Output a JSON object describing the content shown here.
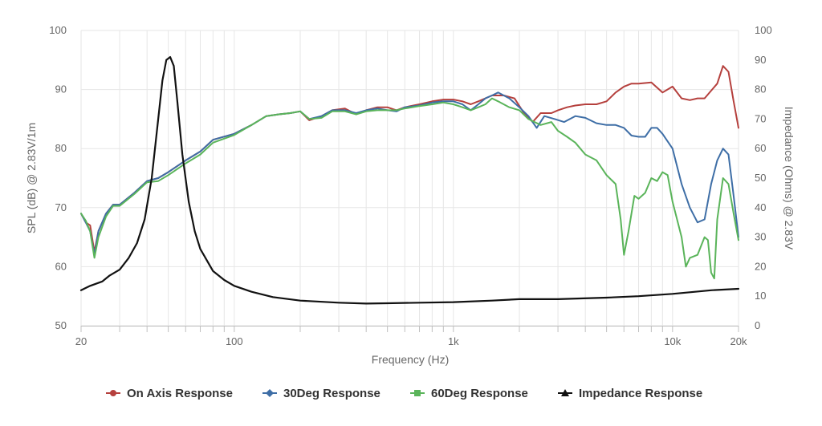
{
  "chart_data": {
    "type": "line",
    "x_scale": "log",
    "xlim": [
      20,
      20000
    ],
    "ylim_left": [
      50,
      100
    ],
    "ylim_right": [
      0,
      100
    ],
    "xlabel": "Frequency (Hz)",
    "ylabel_left": "SPL (dB) @ 2.83V/1m",
    "ylabel_right": "Impedance (Ohms) @ 2.83V",
    "x_ticks": [
      {
        "value": 20,
        "label": "20"
      },
      {
        "value": 100,
        "label": "100"
      },
      {
        "value": 1000,
        "label": "1k"
      },
      {
        "value": 10000,
        "label": "10k"
      },
      {
        "value": 20000,
        "label": "20k"
      }
    ],
    "y_ticks_left": [
      "50",
      "60",
      "70",
      "80",
      "90",
      "100"
    ],
    "y_ticks_right": [
      "0",
      "10",
      "20",
      "30",
      "40",
      "50",
      "60",
      "70",
      "80",
      "90",
      "100"
    ],
    "grid": true,
    "legend_position": "bottom",
    "series": [
      {
        "name": "On Axis Response",
        "axis": "left",
        "color": "#b5403d",
        "marker": "circle",
        "points": [
          [
            20,
            69
          ],
          [
            21,
            67.5
          ],
          [
            22,
            67
          ],
          [
            23,
            62.5
          ],
          [
            24,
            66
          ],
          [
            26,
            69
          ],
          [
            28,
            70.5
          ],
          [
            30,
            70.5
          ],
          [
            35,
            72.5
          ],
          [
            40,
            74.5
          ],
          [
            45,
            75
          ],
          [
            50,
            76
          ],
          [
            60,
            78
          ],
          [
            70,
            79.5
          ],
          [
            80,
            81.5
          ],
          [
            100,
            82.5
          ],
          [
            120,
            84
          ],
          [
            140,
            85.5
          ],
          [
            160,
            85.8
          ],
          [
            180,
            86
          ],
          [
            200,
            86.3
          ],
          [
            220,
            84.8
          ],
          [
            250,
            85.5
          ],
          [
            280,
            86.5
          ],
          [
            320,
            86.8
          ],
          [
            360,
            85.8
          ],
          [
            400,
            86.5
          ],
          [
            450,
            87
          ],
          [
            500,
            87
          ],
          [
            550,
            86.5
          ],
          [
            600,
            87
          ],
          [
            700,
            87.5
          ],
          [
            800,
            88
          ],
          [
            900,
            88.3
          ],
          [
            1000,
            88.3
          ],
          [
            1100,
            88
          ],
          [
            1200,
            87.5
          ],
          [
            1300,
            88
          ],
          [
            1400,
            88.5
          ],
          [
            1500,
            89
          ],
          [
            1700,
            89
          ],
          [
            1900,
            88.5
          ],
          [
            2100,
            86
          ],
          [
            2300,
            84.5
          ],
          [
            2500,
            86
          ],
          [
            2800,
            86
          ],
          [
            3000,
            86.5
          ],
          [
            3300,
            87
          ],
          [
            3600,
            87.3
          ],
          [
            4000,
            87.5
          ],
          [
            4500,
            87.5
          ],
          [
            5000,
            88
          ],
          [
            5500,
            89.5
          ],
          [
            6000,
            90.5
          ],
          [
            6500,
            91
          ],
          [
            7000,
            91
          ],
          [
            8000,
            91.2
          ],
          [
            9000,
            89.5
          ],
          [
            10000,
            90.5
          ],
          [
            11000,
            88.5
          ],
          [
            12000,
            88.2
          ],
          [
            13000,
            88.5
          ],
          [
            14000,
            88.5
          ],
          [
            16000,
            91
          ],
          [
            17000,
            94
          ],
          [
            18000,
            93
          ],
          [
            19000,
            88
          ],
          [
            20000,
            83.5
          ]
        ]
      },
      {
        "name": "30Deg Response",
        "axis": "left",
        "color": "#3e6ea6",
        "marker": "diamond",
        "points": [
          [
            20,
            69
          ],
          [
            21,
            67.5
          ],
          [
            22,
            66
          ],
          [
            23,
            62
          ],
          [
            24,
            66
          ],
          [
            26,
            69
          ],
          [
            28,
            70.5
          ],
          [
            30,
            70.5
          ],
          [
            35,
            72.5
          ],
          [
            40,
            74.5
          ],
          [
            45,
            75
          ],
          [
            50,
            76
          ],
          [
            60,
            78
          ],
          [
            70,
            79.5
          ],
          [
            80,
            81.5
          ],
          [
            100,
            82.5
          ],
          [
            120,
            84
          ],
          [
            140,
            85.5
          ],
          [
            160,
            85.8
          ],
          [
            180,
            86
          ],
          [
            200,
            86.3
          ],
          [
            220,
            85
          ],
          [
            250,
            85.5
          ],
          [
            280,
            86.5
          ],
          [
            320,
            86.5
          ],
          [
            360,
            86
          ],
          [
            400,
            86.5
          ],
          [
            450,
            86.8
          ],
          [
            500,
            86.5
          ],
          [
            550,
            86.3
          ],
          [
            600,
            87
          ],
          [
            700,
            87.3
          ],
          [
            800,
            87.8
          ],
          [
            900,
            88
          ],
          [
            1000,
            88
          ],
          [
            1100,
            87.5
          ],
          [
            1200,
            86.5
          ],
          [
            1300,
            87.5
          ],
          [
            1400,
            88.5
          ],
          [
            1500,
            89
          ],
          [
            1600,
            89.5
          ],
          [
            1800,
            88.5
          ],
          [
            2000,
            87
          ],
          [
            2200,
            85.5
          ],
          [
            2400,
            83.5
          ],
          [
            2600,
            85.5
          ],
          [
            2900,
            85
          ],
          [
            3200,
            84.5
          ],
          [
            3600,
            85.5
          ],
          [
            4000,
            85.2
          ],
          [
            4500,
            84.3
          ],
          [
            5000,
            84
          ],
          [
            5500,
            84
          ],
          [
            6000,
            83.5
          ],
          [
            6500,
            82.2
          ],
          [
            7000,
            82
          ],
          [
            7500,
            82
          ],
          [
            8000,
            83.5
          ],
          [
            8500,
            83.5
          ],
          [
            9000,
            82.5
          ],
          [
            10000,
            80
          ],
          [
            11000,
            74
          ],
          [
            12000,
            70
          ],
          [
            13000,
            67.5
          ],
          [
            14000,
            68
          ],
          [
            15000,
            74
          ],
          [
            16000,
            78
          ],
          [
            17000,
            80
          ],
          [
            18000,
            79
          ],
          [
            19000,
            72
          ],
          [
            20000,
            65
          ]
        ]
      },
      {
        "name": "60Deg Response",
        "axis": "left",
        "color": "#5ab45a",
        "marker": "square",
        "points": [
          [
            20,
            69
          ],
          [
            21,
            67.8
          ],
          [
            22,
            66
          ],
          [
            23,
            61.5
          ],
          [
            24,
            65
          ],
          [
            26,
            68.5
          ],
          [
            28,
            70.3
          ],
          [
            30,
            70.3
          ],
          [
            35,
            72.3
          ],
          [
            40,
            74.3
          ],
          [
            45,
            74.5
          ],
          [
            50,
            75.5
          ],
          [
            60,
            77.5
          ],
          [
            70,
            79
          ],
          [
            80,
            81
          ],
          [
            100,
            82.3
          ],
          [
            120,
            84
          ],
          [
            140,
            85.5
          ],
          [
            160,
            85.8
          ],
          [
            180,
            86
          ],
          [
            200,
            86.3
          ],
          [
            220,
            85
          ],
          [
            250,
            85.2
          ],
          [
            280,
            86.3
          ],
          [
            320,
            86.3
          ],
          [
            360,
            85.8
          ],
          [
            400,
            86.3
          ],
          [
            450,
            86.5
          ],
          [
            500,
            86.5
          ],
          [
            550,
            86.5
          ],
          [
            600,
            86.8
          ],
          [
            700,
            87.2
          ],
          [
            800,
            87.5
          ],
          [
            900,
            87.8
          ],
          [
            1000,
            87.5
          ],
          [
            1100,
            87
          ],
          [
            1200,
            86.5
          ],
          [
            1300,
            87
          ],
          [
            1400,
            87.5
          ],
          [
            1500,
            88.5
          ],
          [
            1600,
            88
          ],
          [
            1800,
            87
          ],
          [
            2000,
            86.5
          ],
          [
            2200,
            85
          ],
          [
            2500,
            84
          ],
          [
            2800,
            84.5
          ],
          [
            3000,
            83
          ],
          [
            3300,
            82
          ],
          [
            3600,
            81
          ],
          [
            4000,
            79
          ],
          [
            4500,
            78
          ],
          [
            5000,
            75.5
          ],
          [
            5500,
            74
          ],
          [
            5800,
            68
          ],
          [
            6000,
            62
          ],
          [
            6300,
            66
          ],
          [
            6700,
            72
          ],
          [
            7000,
            71.5
          ],
          [
            7500,
            72.5
          ],
          [
            8000,
            75
          ],
          [
            8500,
            74.5
          ],
          [
            9000,
            76
          ],
          [
            9500,
            75.5
          ],
          [
            10000,
            71
          ],
          [
            11000,
            65
          ],
          [
            11500,
            60
          ],
          [
            12000,
            61.5
          ],
          [
            13000,
            62
          ],
          [
            14000,
            65
          ],
          [
            14500,
            64.5
          ],
          [
            15000,
            59
          ],
          [
            15500,
            58
          ],
          [
            16000,
            68
          ],
          [
            17000,
            75
          ],
          [
            18000,
            74
          ],
          [
            19000,
            69
          ],
          [
            20000,
            64.5
          ]
        ]
      },
      {
        "name": "Impedance Response",
        "axis": "right",
        "color": "#111111",
        "marker": "triangle",
        "points": [
          [
            20,
            12
          ],
          [
            22,
            13.5
          ],
          [
            25,
            15
          ],
          [
            27,
            17
          ],
          [
            30,
            19
          ],
          [
            33,
            23
          ],
          [
            36,
            28
          ],
          [
            39,
            36
          ],
          [
            42,
            50
          ],
          [
            45,
            70
          ],
          [
            47,
            83
          ],
          [
            49,
            90
          ],
          [
            51,
            91
          ],
          [
            53,
            88
          ],
          [
            55,
            76
          ],
          [
            58,
            58
          ],
          [
            62,
            42
          ],
          [
            66,
            32
          ],
          [
            70,
            26
          ],
          [
            80,
            18.5
          ],
          [
            90,
            15.5
          ],
          [
            100,
            13.5
          ],
          [
            120,
            11.5
          ],
          [
            150,
            9.7
          ],
          [
            200,
            8.5
          ],
          [
            300,
            7.8
          ],
          [
            400,
            7.5
          ],
          [
            500,
            7.6
          ],
          [
            700,
            7.8
          ],
          [
            1000,
            8.0
          ],
          [
            1500,
            8.5
          ],
          [
            2000,
            9.0
          ],
          [
            3000,
            9.0
          ],
          [
            5000,
            9.5
          ],
          [
            7000,
            10
          ],
          [
            10000,
            10.8
          ],
          [
            15000,
            12
          ],
          [
            20000,
            12.5
          ]
        ]
      }
    ]
  }
}
